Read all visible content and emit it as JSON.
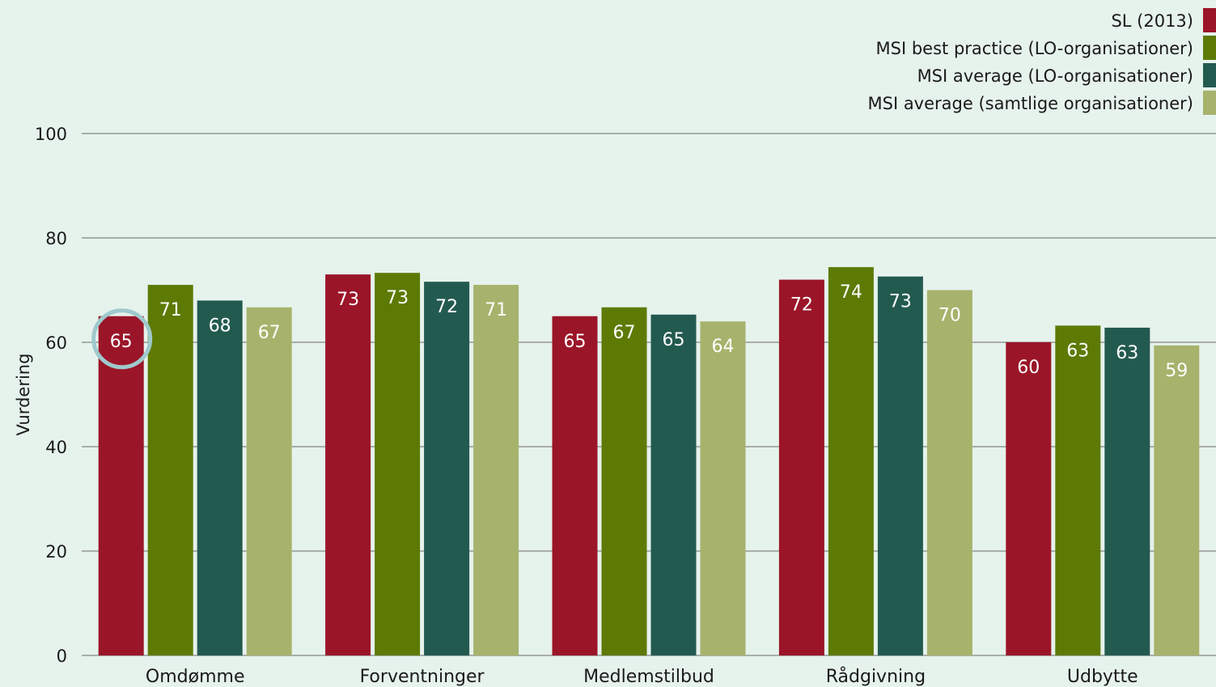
{
  "chart_data": {
    "type": "bar",
    "ylabel": "Vurdering",
    "xlabel": "",
    "ylim": [
      0,
      100
    ],
    "yticks": [
      0,
      20,
      40,
      60,
      80,
      100
    ],
    "grid": "horizontal",
    "legend_position": "top-right",
    "categories": [
      "Omdømme",
      "Forventninger",
      "Medlemstilbud",
      "Rådgivning",
      "Udbytte"
    ],
    "series": [
      {
        "name": "SL (2013)",
        "color": "#9b1528",
        "values": [
          65,
          73,
          65,
          72,
          60
        ],
        "labels": [
          "65",
          "73",
          "65",
          "72",
          "60"
        ]
      },
      {
        "name": "MSI best practice (LO-organisationer)",
        "color": "#5d7a05",
        "values": [
          71,
          73.3,
          66.7,
          74.4,
          63.2
        ],
        "labels": [
          "71",
          "73",
          "67",
          "74",
          "63"
        ]
      },
      {
        "name": "MSI average (LO-organisationer)",
        "color": "#235a50",
        "values": [
          68,
          71.6,
          65.3,
          72.6,
          62.8
        ],
        "labels": [
          "68",
          "72",
          "65",
          "73",
          "63"
        ]
      },
      {
        "name": "MSI average (samtlige organisationer)",
        "color": "#a7b36c",
        "values": [
          66.7,
          71,
          64,
          70,
          59.4
        ],
        "labels": [
          "67",
          "71",
          "64",
          "70",
          "59"
        ]
      }
    ],
    "highlight": {
      "series": 0,
      "category": 0,
      "shape": "circle",
      "color": "#9fc9cc"
    }
  }
}
